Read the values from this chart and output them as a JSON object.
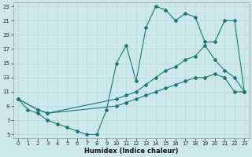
{
  "xlabel": "Humidex (Indice chaleur)",
  "bg_color": "#cce8ed",
  "grid_color": "#b8d8dc",
  "line_color": "#1a7a6e",
  "xlim": [
    -0.5,
    23.5
  ],
  "ylim": [
    4.5,
    23.5
  ],
  "xticks": [
    0,
    1,
    2,
    3,
    4,
    5,
    6,
    7,
    8,
    9,
    10,
    11,
    12,
    13,
    14,
    15,
    16,
    17,
    18,
    19,
    20,
    21,
    22,
    23
  ],
  "yticks": [
    5,
    7,
    9,
    11,
    13,
    15,
    17,
    19,
    21,
    23
  ],
  "line1_x": [
    0,
    1,
    2,
    3,
    4,
    5,
    6,
    7,
    8,
    9,
    10,
    11,
    12,
    13,
    14,
    15,
    16,
    17,
    18,
    19,
    20,
    21,
    22,
    23
  ],
  "line1_y": [
    10,
    8.5,
    8,
    7,
    6.5,
    6,
    5.5,
    5,
    5,
    8.5,
    15,
    17.5,
    12.5,
    20,
    23,
    22.5,
    21,
    22,
    21.5,
    18,
    18,
    21,
    21,
    11
  ],
  "line2_x": [
    0,
    2,
    3,
    10,
    11,
    12,
    13,
    14,
    15,
    16,
    17,
    18,
    19,
    20,
    21,
    22,
    23
  ],
  "line2_y": [
    10,
    8.5,
    8,
    10,
    10.5,
    11,
    12,
    13,
    14,
    14.5,
    15.5,
    16,
    17.5,
    15.5,
    14,
    13,
    11
  ],
  "line3_x": [
    0,
    2,
    3,
    10,
    11,
    12,
    13,
    14,
    15,
    16,
    17,
    18,
    19,
    20,
    21,
    22,
    23
  ],
  "line3_y": [
    10,
    8.5,
    8,
    9,
    9.5,
    10,
    10.5,
    11,
    11.5,
    12,
    12.5,
    13,
    13,
    13.5,
    13,
    11,
    11
  ]
}
